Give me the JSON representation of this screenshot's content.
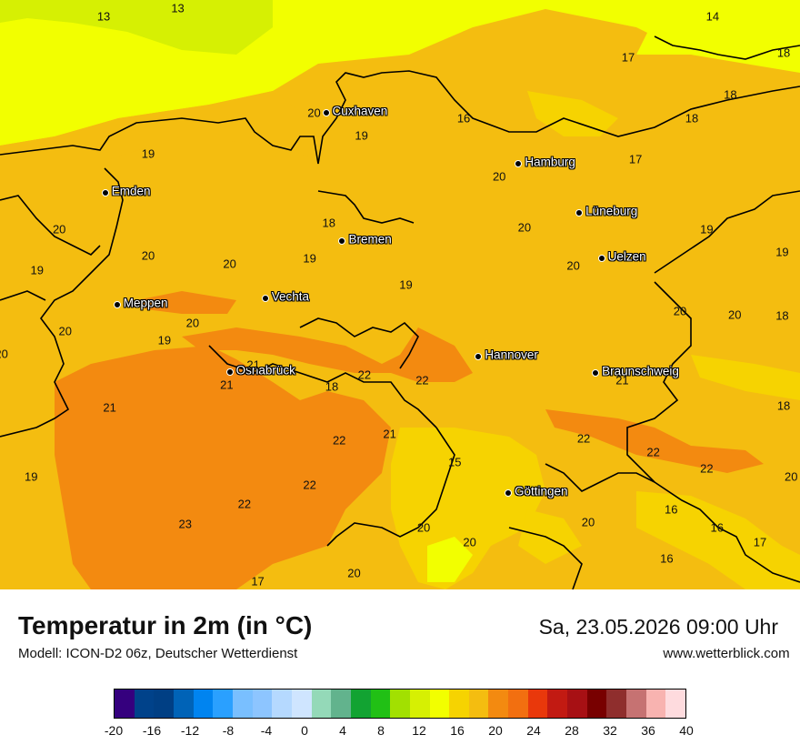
{
  "header": {
    "title": "Temperatur in 2m (in °C)",
    "model": "Modell: ICON-D2 06z, Deutscher Wetterdienst",
    "datetime": "Sa, 23.05.2026 09:00 Uhr",
    "website": "www.wetterblick.com"
  },
  "cities": [
    {
      "name": "Cuxhaven",
      "lon": 8.7,
      "lat": 53.86
    },
    {
      "name": "Hamburg",
      "lon": 10.0,
      "lat": 53.55
    },
    {
      "name": "Emden",
      "lon": 7.21,
      "lat": 53.37
    },
    {
      "name": "Lüneburg",
      "lon": 10.41,
      "lat": 53.25
    },
    {
      "name": "Bremen",
      "lon": 8.81,
      "lat": 53.08
    },
    {
      "name": "Uelzen",
      "lon": 10.56,
      "lat": 52.97
    },
    {
      "name": "Vechta",
      "lon": 8.29,
      "lat": 52.73
    },
    {
      "name": "Meppen",
      "lon": 7.29,
      "lat": 52.69
    },
    {
      "name": "Hannover",
      "lon": 9.73,
      "lat": 52.37
    },
    {
      "name": "Osnabrück",
      "lon": 8.05,
      "lat": 52.28
    },
    {
      "name": "Braunschweig",
      "lon": 10.52,
      "lat": 52.27
    },
    {
      "name": "Göttingen",
      "lon": 9.93,
      "lat": 51.54
    }
  ],
  "temperature_values": [
    {
      "v": "13",
      "lon": 7.2,
      "lat": 54.45
    },
    {
      "v": "13",
      "lon": 7.7,
      "lat": 54.5
    },
    {
      "v": "17",
      "lon": 10.74,
      "lat": 54.2
    },
    {
      "v": "14",
      "lon": 11.31,
      "lat": 54.45
    },
    {
      "v": "18",
      "lon": 11.79,
      "lat": 54.23
    },
    {
      "v": "18",
      "lon": 11.43,
      "lat": 53.97
    },
    {
      "v": "20",
      "lon": 8.62,
      "lat": 53.86
    },
    {
      "v": "19",
      "lon": 8.94,
      "lat": 53.72
    },
    {
      "v": "16",
      "lon": 9.63,
      "lat": 53.83
    },
    {
      "v": "18",
      "lon": 11.17,
      "lat": 53.83
    },
    {
      "v": "17",
      "lon": 10.79,
      "lat": 53.58
    },
    {
      "v": "19",
      "lon": 7.5,
      "lat": 53.61
    },
    {
      "v": "20",
      "lon": 9.87,
      "lat": 53.47
    },
    {
      "v": "20",
      "lon": 6.9,
      "lat": 53.15
    },
    {
      "v": "18",
      "lon": 8.72,
      "lat": 53.19
    },
    {
      "v": "20",
      "lon": 10.04,
      "lat": 53.16
    },
    {
      "v": "19",
      "lon": 11.27,
      "lat": 53.15
    },
    {
      "v": "19",
      "lon": 11.78,
      "lat": 53.01
    },
    {
      "v": "19",
      "lon": 6.75,
      "lat": 52.9
    },
    {
      "v": "20",
      "lon": 7.5,
      "lat": 52.99
    },
    {
      "v": "20",
      "lon": 8.05,
      "lat": 52.94
    },
    {
      "v": "19",
      "lon": 8.59,
      "lat": 52.97
    },
    {
      "v": "20",
      "lon": 10.37,
      "lat": 52.93
    },
    {
      "v": "19",
      "lon": 9.24,
      "lat": 52.81
    },
    {
      "v": "20",
      "lon": 11.09,
      "lat": 52.65
    },
    {
      "v": "20",
      "lon": 11.46,
      "lat": 52.63
    },
    {
      "v": "18",
      "lon": 11.78,
      "lat": 52.62
    },
    {
      "v": "20",
      "lon": 7.8,
      "lat": 52.58
    },
    {
      "v": "20",
      "lon": 6.94,
      "lat": 52.53
    },
    {
      "v": "19",
      "lon": 7.61,
      "lat": 52.47
    },
    {
      "v": "20",
      "lon": 6.51,
      "lat": 52.39
    },
    {
      "v": "21",
      "lon": 8.21,
      "lat": 52.32
    },
    {
      "v": "22",
      "lon": 8.96,
      "lat": 52.26
    },
    {
      "v": "22",
      "lon": 9.35,
      "lat": 52.23
    },
    {
      "v": "21",
      "lon": 10.7,
      "lat": 52.23
    },
    {
      "v": "21",
      "lon": 8.03,
      "lat": 52.2
    },
    {
      "v": "18",
      "lon": 8.74,
      "lat": 52.19
    },
    {
      "v": "21",
      "lon": 7.24,
      "lat": 52.06
    },
    {
      "v": "18",
      "lon": 11.79,
      "lat": 52.07
    },
    {
      "v": "22",
      "lon": 8.79,
      "lat": 51.86
    },
    {
      "v": "21",
      "lon": 9.13,
      "lat": 51.9
    },
    {
      "v": "22",
      "lon": 10.44,
      "lat": 51.87
    },
    {
      "v": "22",
      "lon": 10.91,
      "lat": 51.79
    },
    {
      "v": "15",
      "lon": 9.57,
      "lat": 51.73
    },
    {
      "v": "22",
      "lon": 11.27,
      "lat": 51.69
    },
    {
      "v": "19",
      "lon": 6.71,
      "lat": 51.64
    },
    {
      "v": "20",
      "lon": 11.84,
      "lat": 51.64
    },
    {
      "v": "22",
      "lon": 8.59,
      "lat": 51.59
    },
    {
      "v": "22",
      "lon": 8.15,
      "lat": 51.47
    },
    {
      "v": "16",
      "lon": 11.03,
      "lat": 51.44
    },
    {
      "v": "23",
      "lon": 7.75,
      "lat": 51.35
    },
    {
      "v": "20",
      "lon": 10.47,
      "lat": 51.36
    },
    {
      "v": "20",
      "lon": 9.36,
      "lat": 51.33
    },
    {
      "v": "16",
      "lon": 11.34,
      "lat": 51.33
    },
    {
      "v": "20",
      "lon": 9.67,
      "lat": 51.24
    },
    {
      "v": "17",
      "lon": 11.63,
      "lat": 51.24
    },
    {
      "v": "16",
      "lon": 11.0,
      "lat": 51.14
    },
    {
      "v": "20",
      "lon": 8.89,
      "lat": 51.05
    },
    {
      "v": "17",
      "lon": 8.24,
      "lat": 51.0
    }
  ],
  "legend": {
    "ticks": [
      "-20",
      "-16",
      "-12",
      "-8",
      "-4",
      "0",
      "4",
      "8",
      "12",
      "16",
      "20",
      "24",
      "28",
      "32",
      "36",
      "40"
    ],
    "colors": [
      "#35007e",
      "#00428a",
      "#003f84",
      "#0063b7",
      "#0084f0",
      "#2aa0ff",
      "#79bfff",
      "#8dc5ff",
      "#b5d9ff",
      "#cfe5ff",
      "#94d9b8",
      "#62b38d",
      "#12a332",
      "#21c015",
      "#a2e001",
      "#d6f003",
      "#f2ff00",
      "#f6d301",
      "#f4bd10",
      "#f38a10",
      "#f26f10",
      "#e9380b",
      "#c21a12",
      "#a71014",
      "#780000",
      "#8f2e2d",
      "#c67272",
      "#f8b3b0",
      "#fedbde"
    ],
    "vmin": -20,
    "vmax": 40
  },
  "map_extent": {
    "lon_min": 6.5,
    "lon_max": 11.9,
    "lat_min": 50.95,
    "lat_max": 54.55
  }
}
